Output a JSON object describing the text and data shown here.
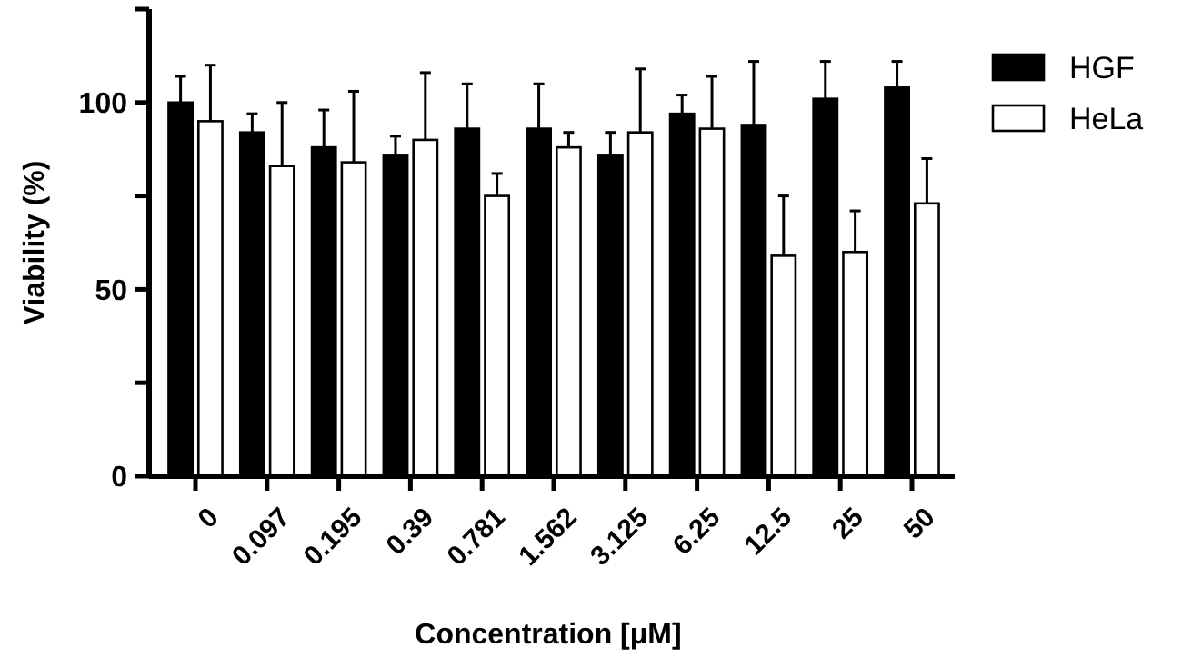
{
  "chart_data": {
    "type": "bar",
    "xlabel": "Concentration [μM]",
    "ylabel": "Viability (%)",
    "categories": [
      "0",
      "0.097",
      "0.195",
      "0.39",
      "0.781",
      "1.562",
      "3.125",
      "6.25",
      "12.5",
      "25",
      "50"
    ],
    "series": [
      {
        "name": "HGF",
        "color": "#000000",
        "values": [
          100,
          92,
          88,
          86,
          93,
          93,
          86,
          97,
          94,
          101,
          104
        ],
        "errors": [
          7,
          5,
          10,
          5,
          12,
          12,
          6,
          5,
          17,
          10,
          7
        ]
      },
      {
        "name": "HeLa",
        "color": "#ffffff",
        "values": [
          95,
          83,
          84,
          90,
          75,
          88,
          92,
          93,
          59,
          60,
          73
        ],
        "errors": [
          15,
          17,
          19,
          18,
          6,
          4,
          17,
          14,
          16,
          11,
          12
        ]
      }
    ],
    "ylim": [
      0,
      125
    ],
    "yticks": [
      0,
      {
        "value": 25,
        "label": null
      },
      50,
      {
        "value": 75,
        "label": null
      },
      100,
      {
        "value": 125,
        "label": null
      }
    ],
    "grid": false,
    "legend": "top right"
  }
}
